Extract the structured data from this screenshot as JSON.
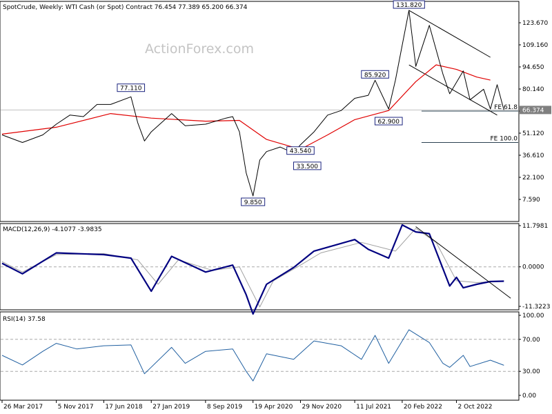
{
  "header": {
    "title": "SpotCrude, Weekly:  WTI Cash (or Spot) Contract  76.454 77.389 65.200 66.374"
  },
  "watermark": "ActionForex.com",
  "colors": {
    "price": "#000000",
    "sma": "#e00000",
    "macd": "#000080",
    "signal": "#a0a0a0",
    "rsi": "#1f5fa0",
    "grid_axis": "#000000",
    "current_price_box": "#808080"
  },
  "chart_data": [
    {
      "type": "candlestick",
      "panel": "price",
      "title": "SpotCrude, Weekly:  WTI Cash (or Spot) Contract  76.454 77.389 65.200 66.374",
      "y_ticks": [
        "123.670",
        "109.160",
        "94.650",
        "80.140",
        "65.630",
        "51.120",
        "36.610",
        "22.100",
        "7.590"
      ],
      "ylim": [
        0,
        138
      ],
      "current_price": "66.374",
      "series": [
        {
          "name": "Price",
          "kind": "line_approximation_of_weekly_bars",
          "points": [
            [
              "Mar 2017",
              50.0
            ],
            [
              "Jun 2017",
              45.0
            ],
            [
              "Sep 2017",
              50.0
            ],
            [
              "Nov 2017",
              57.0
            ],
            [
              "Jan 2018",
              63.0
            ],
            [
              "Mar 2018",
              62.0
            ],
            [
              "May 2018",
              70.0
            ],
            [
              "Jul 2018",
              70.0
            ],
            [
              "Oct 2018",
              75.0
            ],
            [
              "Nov 2018",
              58.0
            ],
            [
              "Dec 2018",
              46.0
            ],
            [
              "Jan 2019",
              52.0
            ],
            [
              "Apr 2019",
              64.0
            ],
            [
              "Jun 2019",
              56.0
            ],
            [
              "Sep 2019",
              57.0
            ],
            [
              "Dec 2019",
              61.0
            ],
            [
              "Jan 2020",
              62.0
            ],
            [
              "Feb 2020",
              52.0
            ],
            [
              "Mar 2020",
              25.0
            ],
            [
              "Apr 2020",
              9.85
            ],
            [
              "May 2020",
              33.5
            ],
            [
              "Jun 2020",
              39.0
            ],
            [
              "Aug 2020",
              42.0
            ],
            [
              "Oct 2020",
              38.0
            ],
            [
              "Nov 2020",
              43.54
            ],
            [
              "Jan 2021",
              52.0
            ],
            [
              "Mar 2021",
              63.0
            ],
            [
              "May 2021",
              66.0
            ],
            [
              "Jul 2021",
              74.0
            ],
            [
              "Sep 2021",
              76.0
            ],
            [
              "Oct 2021",
              85.92
            ],
            [
              "Dec 2021",
              67.0
            ],
            [
              "Jan 2022",
              86.0
            ],
            [
              "Mar 2022",
              131.82
            ],
            [
              "Apr 2022",
              95.0
            ],
            [
              "Jun 2022",
              122.0
            ],
            [
              "Aug 2022",
              90.0
            ],
            [
              "Sep 2022",
              77.0
            ],
            [
              "Nov 2022",
              92.0
            ],
            [
              "Dec 2022",
              73.0
            ],
            [
              "Feb 2023",
              80.0
            ],
            [
              "Mar 2023",
              67.0
            ],
            [
              "Apr 2023",
              83.0
            ],
            [
              "May 2023",
              66.374
            ]
          ]
        },
        {
          "name": "SMA",
          "points": [
            [
              "Mar 2017",
              50.5
            ],
            [
              "Nov 2017",
              55.0
            ],
            [
              "Jul 2018",
              64.0
            ],
            [
              "Jan 2019",
              61.0
            ],
            [
              "Sep 2019",
              59.0
            ],
            [
              "Feb 2020",
              59.5
            ],
            [
              "Jun 2020",
              47.0
            ],
            [
              "Nov 2020",
              40.5
            ],
            [
              "Mar 2021",
              50.0
            ],
            [
              "Jul 2021",
              60.0
            ],
            [
              "Dec 2021",
              66.0
            ],
            [
              "Apr 2022",
              85.0
            ],
            [
              "Jul 2022",
              96.0
            ],
            [
              "Oct 2022",
              93.0
            ],
            [
              "Jan 2023",
              88.0
            ],
            [
              "Mar 2023",
              86.0
            ]
          ]
        }
      ],
      "labels": [
        {
          "text": "77.110",
          "date": "Oct 2018",
          "value": 77.11
        },
        {
          "text": "9.850",
          "date": "Apr 2020",
          "value": 9.85
        },
        {
          "text": "43.540",
          "date": "Nov 2020",
          "value": 43.54
        },
        {
          "text": "33.500",
          "date": "Dec 2020",
          "value": 33.5
        },
        {
          "text": "85.920",
          "date": "Oct 2021",
          "value": 85.92
        },
        {
          "text": "62.900",
          "date": "Dec 2021",
          "value": 62.9
        },
        {
          "text": "131.820",
          "date": "Mar 2022",
          "value": 131.82
        }
      ],
      "fib_levels": [
        {
          "label": "FE 61.8",
          "value": 65.63
        },
        {
          "label": "FE 100.0",
          "value": 45.0
        }
      ],
      "channel": {
        "upper": [
          [
            "Mar 2022",
            131.82
          ],
          [
            "Mar 2023",
            101.0
          ]
        ],
        "lower": [
          [
            "Mar 2022",
            96.0
          ],
          [
            "Apr 2023",
            63.0
          ]
        ]
      },
      "price_level_line": {
        "value": 66.374
      }
    },
    {
      "type": "line",
      "panel": "macd",
      "title": "MACD(12,26,9) -4.1077 -3.9835",
      "y_ticks": [
        "11.7981",
        "0.0000",
        "-11.3223"
      ],
      "ylim": [
        -14.0,
        14.0
      ],
      "series": [
        {
          "name": "MACD",
          "points": [
            [
              "Mar 2017",
              1.0
            ],
            [
              "Jun 2017",
              -2.0
            ],
            [
              "Nov 2017",
              4.0
            ],
            [
              "Jun 2018",
              3.5
            ],
            [
              "Oct 2018",
              2.5
            ],
            [
              "Jan 2019",
              -7.0
            ],
            [
              "Apr 2019",
              3.0
            ],
            [
              "Sep 2019",
              -1.5
            ],
            [
              "Jan 2020",
              0.5
            ],
            [
              "Mar 2020",
              -8.0
            ],
            [
              "Apr 2020",
              -13.5
            ],
            [
              "Jun 2020",
              -5.0
            ],
            [
              "Oct 2020",
              -0.2
            ],
            [
              "Jan 2021",
              4.5
            ],
            [
              "Jul 2021",
              7.8
            ],
            [
              "Sep 2021",
              5.0
            ],
            [
              "Dec 2021",
              2.5
            ],
            [
              "Feb 2022",
              12.0
            ],
            [
              "Apr 2022",
              10.0
            ],
            [
              "Jun 2022",
              9.5
            ],
            [
              "Sep 2022",
              -5.5
            ],
            [
              "Oct 2022",
              -3.0
            ],
            [
              "Nov 2022",
              -6.0
            ],
            [
              "Jan 2023",
              -5.0
            ],
            [
              "Mar 2023",
              -4.2
            ],
            [
              "May 2023",
              -4.1077
            ]
          ]
        },
        {
          "name": "Signal",
          "points": [
            [
              "Mar 2017",
              1.5
            ],
            [
              "Jun 2017",
              -1.5
            ],
            [
              "Nov 2017",
              3.5
            ],
            [
              "Jun 2018",
              3.8
            ],
            [
              "Nov 2018",
              2.0
            ],
            [
              "Feb 2019",
              -5.0
            ],
            [
              "May 2019",
              2.0
            ],
            [
              "Oct 2019",
              -1.0
            ],
            [
              "Feb 2020",
              0.0
            ],
            [
              "May 2020",
              -11.5
            ],
            [
              "Jul 2020",
              -4.0
            ],
            [
              "Nov 2020",
              0.5
            ],
            [
              "Feb 2021",
              4.0
            ],
            [
              "Aug 2021",
              7.0
            ],
            [
              "Jan 2022",
              4.5
            ],
            [
              "Apr 2022",
              11.0
            ],
            [
              "Jul 2022",
              7.0
            ],
            [
              "Oct 2022",
              -4.0
            ],
            [
              "Jan 2023",
              -4.5
            ],
            [
              "May 2023",
              -3.9835
            ]
          ]
        }
      ],
      "trendline": [
        [
          "Apr 2022",
          11.5
        ],
        [
          "Jun 2023",
          -9.0
        ]
      ]
    },
    {
      "type": "line",
      "panel": "rsi",
      "title": "RSI(14) 37.58",
      "y_ticks": [
        "100.00",
        "70.00",
        "30.00",
        "0.00"
      ],
      "ylim": [
        0,
        100
      ],
      "reference_lines": [
        70,
        30
      ],
      "series": [
        {
          "name": "RSI",
          "points": [
            [
              "Mar 2017",
              50.0
            ],
            [
              "Jun 2017",
              38.0
            ],
            [
              "Sep 2017",
              55.0
            ],
            [
              "Nov 2017",
              65.0
            ],
            [
              "Feb 2018",
              58.0
            ],
            [
              "Jun 2018",
              62.0
            ],
            [
              "Oct 2018",
              63.0
            ],
            [
              "Dec 2018",
              27.0
            ],
            [
              "Apr 2019",
              60.0
            ],
            [
              "Jun 2019",
              40.0
            ],
            [
              "Sep 2019",
              55.0
            ],
            [
              "Jan 2020",
              58.0
            ],
            [
              "Mar 2020",
              30.0
            ],
            [
              "Apr 2020",
              18.0
            ],
            [
              "Jun 2020",
              52.0
            ],
            [
              "Oct 2020",
              45.0
            ],
            [
              "Jan 2021",
              68.0
            ],
            [
              "May 2021",
              62.0
            ],
            [
              "Aug 2021",
              45.0
            ],
            [
              "Oct 2021",
              75.0
            ],
            [
              "Dec 2021",
              40.0
            ],
            [
              "Mar 2022",
              82.0
            ],
            [
              "Jun 2022",
              66.0
            ],
            [
              "Aug 2022",
              40.0
            ],
            [
              "Sep 2022",
              35.0
            ],
            [
              "Nov 2022",
              50.0
            ],
            [
              "Dec 2022",
              36.0
            ],
            [
              "Mar 2023",
              44.0
            ],
            [
              "May 2023",
              37.58
            ]
          ]
        }
      ]
    }
  ],
  "x_axis": {
    "labels": [
      {
        "text": "26 Mar 2017",
        "date": "Mar 2017"
      },
      {
        "text": "5 Nov 2017",
        "date": "Nov 2017"
      },
      {
        "text": "17 Jun 2018",
        "date": "Jun 2018"
      },
      {
        "text": "27 Jan 2019",
        "date": "Jan 2019"
      },
      {
        "text": "8 Sep 2019",
        "date": "Sep 2019"
      },
      {
        "text": "19 Apr 2020",
        "date": "Apr 2020"
      },
      {
        "text": "29 Nov 2020",
        "date": "Nov 2020"
      },
      {
        "text": "11 Jul 2021",
        "date": "Jul 2021"
      },
      {
        "text": "20 Feb 2022",
        "date": "Feb 2022"
      },
      {
        "text": "2 Oct 2022",
        "date": "Oct 2022"
      }
    ]
  }
}
